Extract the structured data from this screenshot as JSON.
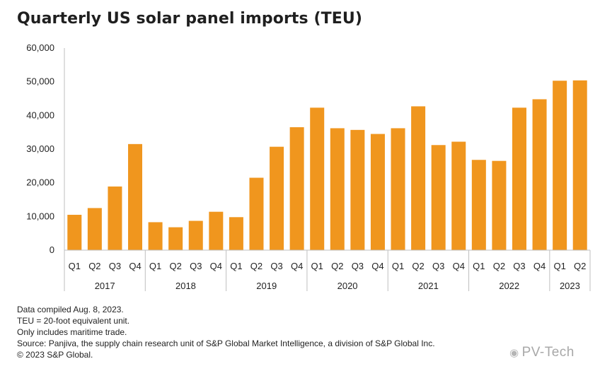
{
  "title": "Quarterly US solar panel imports (TEU)",
  "chart_data": {
    "type": "bar",
    "title": "Quarterly US solar panel imports (TEU)",
    "xlabel": "",
    "ylabel": "",
    "ylim": [
      0,
      60000
    ],
    "yticks": [
      0,
      10000,
      20000,
      30000,
      40000,
      50000,
      60000
    ],
    "ytick_labels": [
      "0",
      "10,000",
      "20,000",
      "30,000",
      "40,000",
      "50,000",
      "60,000"
    ],
    "grid": false,
    "bar_color": "#F0961E",
    "categories": [
      "Q1",
      "Q2",
      "Q3",
      "Q4",
      "Q1",
      "Q2",
      "Q3",
      "Q4",
      "Q1",
      "Q2",
      "Q3",
      "Q4",
      "Q1",
      "Q2",
      "Q3",
      "Q4",
      "Q1",
      "Q2",
      "Q3",
      "Q4",
      "Q1",
      "Q2",
      "Q3",
      "Q4",
      "Q1",
      "Q2"
    ],
    "groups": [
      {
        "label": "2017",
        "count": 4
      },
      {
        "label": "2018",
        "count": 4
      },
      {
        "label": "2019",
        "count": 4
      },
      {
        "label": "2020",
        "count": 4
      },
      {
        "label": "2021",
        "count": 4
      },
      {
        "label": "2022",
        "count": 4
      },
      {
        "label": "2023",
        "count": 2
      }
    ],
    "values": [
      10500,
      12500,
      18900,
      31500,
      8300,
      6800,
      8700,
      11400,
      9800,
      21500,
      30700,
      36500,
      42300,
      36200,
      35700,
      34500,
      36200,
      42700,
      31200,
      32200,
      26800,
      26500,
      42300,
      44800,
      50300,
      50400
    ]
  },
  "notes": [
    "Data compiled Aug. 8, 2023.",
    "TEU = 20-foot equivalent unit.",
    "Only includes maritime trade.",
    "Source: Panjiva, the supply chain research unit of S&P Global Market Intelligence, a division of S&P Global Inc.",
    "© 2023 S&P Global."
  ],
  "watermark": {
    "icon": "wechat-icon",
    "text": "PV-Tech"
  }
}
